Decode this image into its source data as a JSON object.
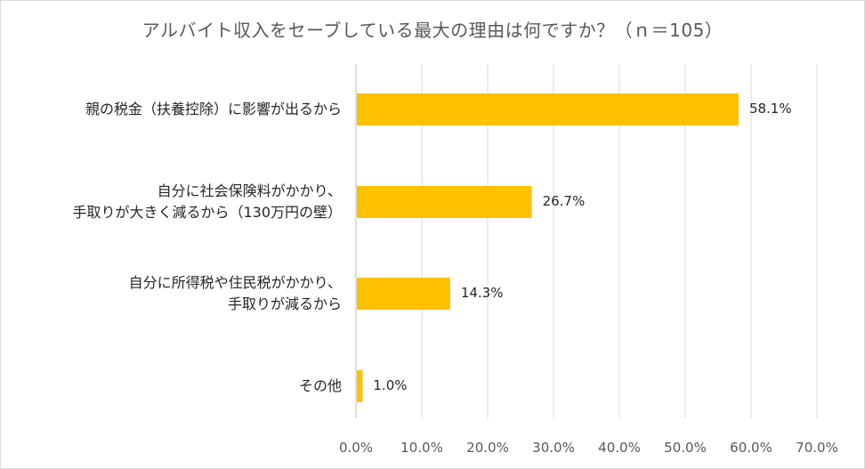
{
  "chart_data": {
    "type": "bar",
    "orientation": "horizontal",
    "title": "アルバイト収入をセーブしている最大の理由は何ですか？（ｎ＝105）",
    "categories": [
      [
        "親の税金（扶養控除）に影響が出るから"
      ],
      [
        "自分に社会保険料がかかり、",
        "手取りが大きく減るから（130万円の壁）"
      ],
      [
        "自分に所得税や住民税がかかり、",
        "手取りが減るから"
      ],
      [
        "その他"
      ]
    ],
    "values": [
      58.1,
      26.7,
      14.3,
      1.0
    ],
    "value_labels": [
      "58.1%",
      "26.7%",
      "14.3%",
      "1.0%"
    ],
    "xlim": [
      0,
      70
    ],
    "x_ticks": [
      "0.0%",
      "10.0%",
      "20.0%",
      "30.0%",
      "40.0%",
      "50.0%",
      "60.0%",
      "70.0%"
    ],
    "grid": true,
    "bar_color": "#ffc000",
    "grid_color": "#d9d9d9"
  }
}
